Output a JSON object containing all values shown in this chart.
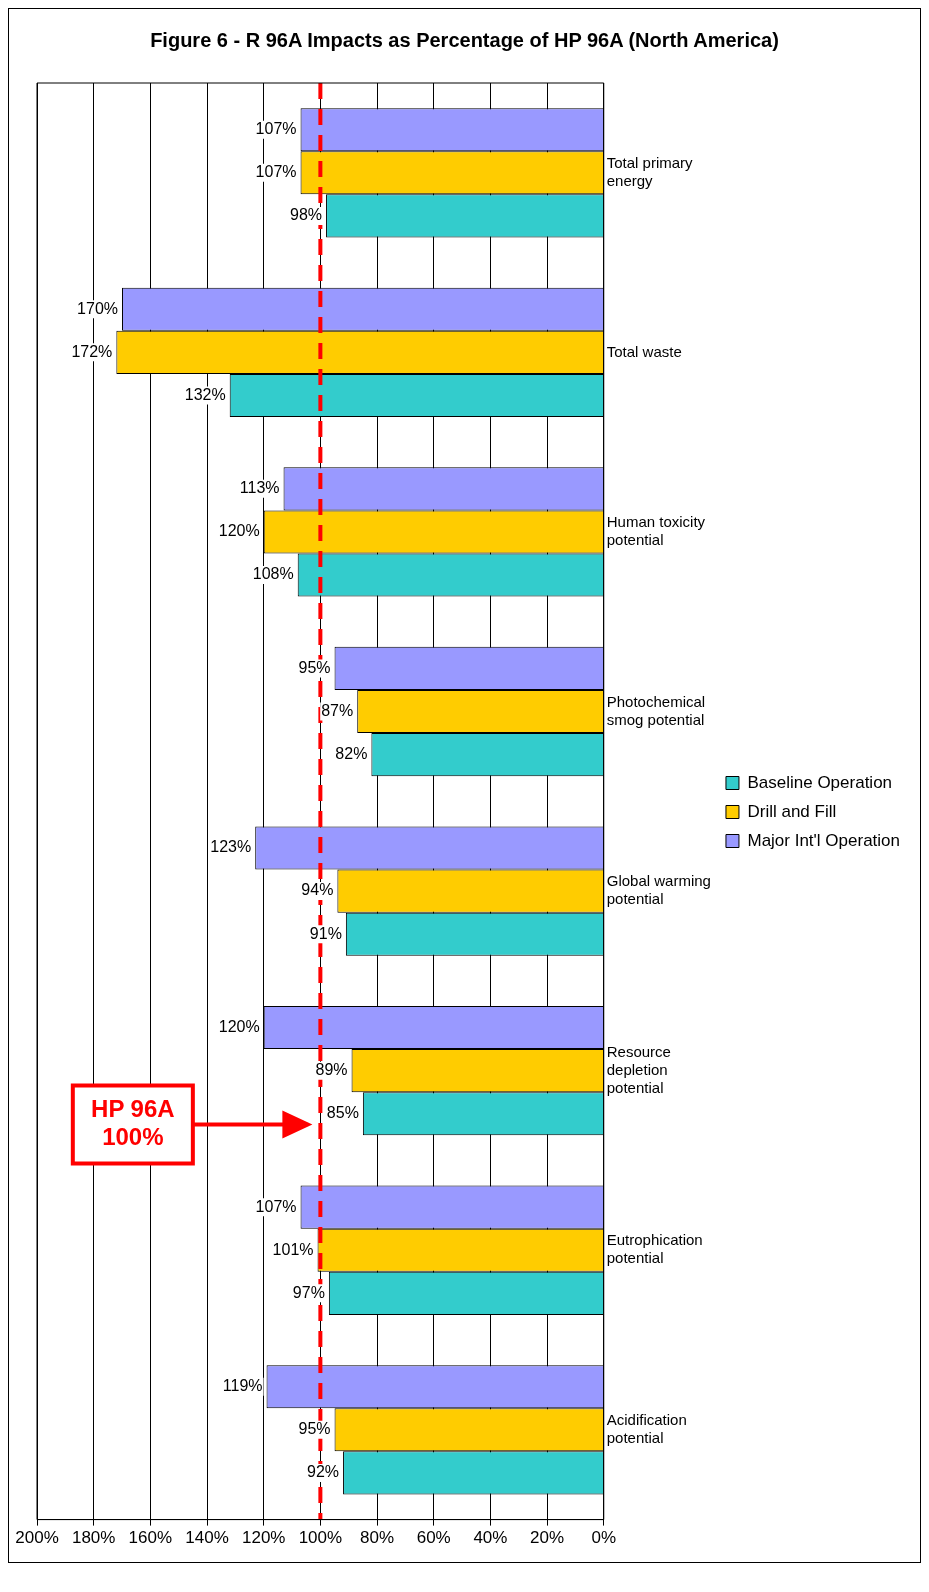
{
  "chart_data": {
    "type": "bar",
    "orientation": "horizontal",
    "title": "Figure 6 - R 96A Impacts as Percentage of HP 96A (North America)",
    "categories": [
      "Total primary energy",
      "Total waste",
      "Human toxicity potential",
      "Photochemical smog potential",
      "Global warming potential",
      "Resource depletion potential",
      "Eutrophication potential",
      "Acidification potential"
    ],
    "series": [
      {
        "name": "Baseline Operation",
        "color": "#33cccc",
        "values": [
          98,
          132,
          108,
          82,
          91,
          85,
          97,
          92
        ],
        "value_labels": [
          "98%",
          "132%",
          "108%",
          "82%",
          "91%",
          "85%",
          "97%",
          "92%"
        ]
      },
      {
        "name": "Drill and Fill",
        "color": "#ffcc00",
        "values": [
          107,
          172,
          120,
          87,
          94,
          89,
          101,
          95
        ],
        "value_labels": [
          "107%",
          "172%",
          "120%",
          "87%",
          "94%",
          "89%",
          "101%",
          "95%"
        ]
      },
      {
        "name": "Major Int'l Operation",
        "color": "#9999ff",
        "values": [
          107,
          170,
          113,
          95,
          123,
          120,
          107,
          119
        ],
        "value_labels": [
          "107%",
          "170%",
          "113%",
          "95%",
          "123%",
          "120%",
          "107%",
          "119%"
        ]
      }
    ],
    "xlim": [
      200,
      0
    ],
    "xticks": [
      {
        "value": 0,
        "label": "0%"
      },
      {
        "value": 20,
        "label": "20%"
      },
      {
        "value": 40,
        "label": "40%"
      },
      {
        "value": 60,
        "label": "60%"
      },
      {
        "value": 80,
        "label": "80%"
      },
      {
        "value": 100,
        "label": "100%"
      },
      {
        "value": 120,
        "label": "120%"
      },
      {
        "value": 140,
        "label": "140%"
      },
      {
        "value": 160,
        "label": "160%"
      },
      {
        "value": 180,
        "label": "180%"
      },
      {
        "value": 200,
        "label": "200%"
      }
    ],
    "ref_lines": [
      {
        "axis": "x",
        "value": 100,
        "label": "HP 96A 100%",
        "color": "#ff0000",
        "line_style": "dashed"
      }
    ],
    "grid": "x",
    "legend": "right"
  }
}
